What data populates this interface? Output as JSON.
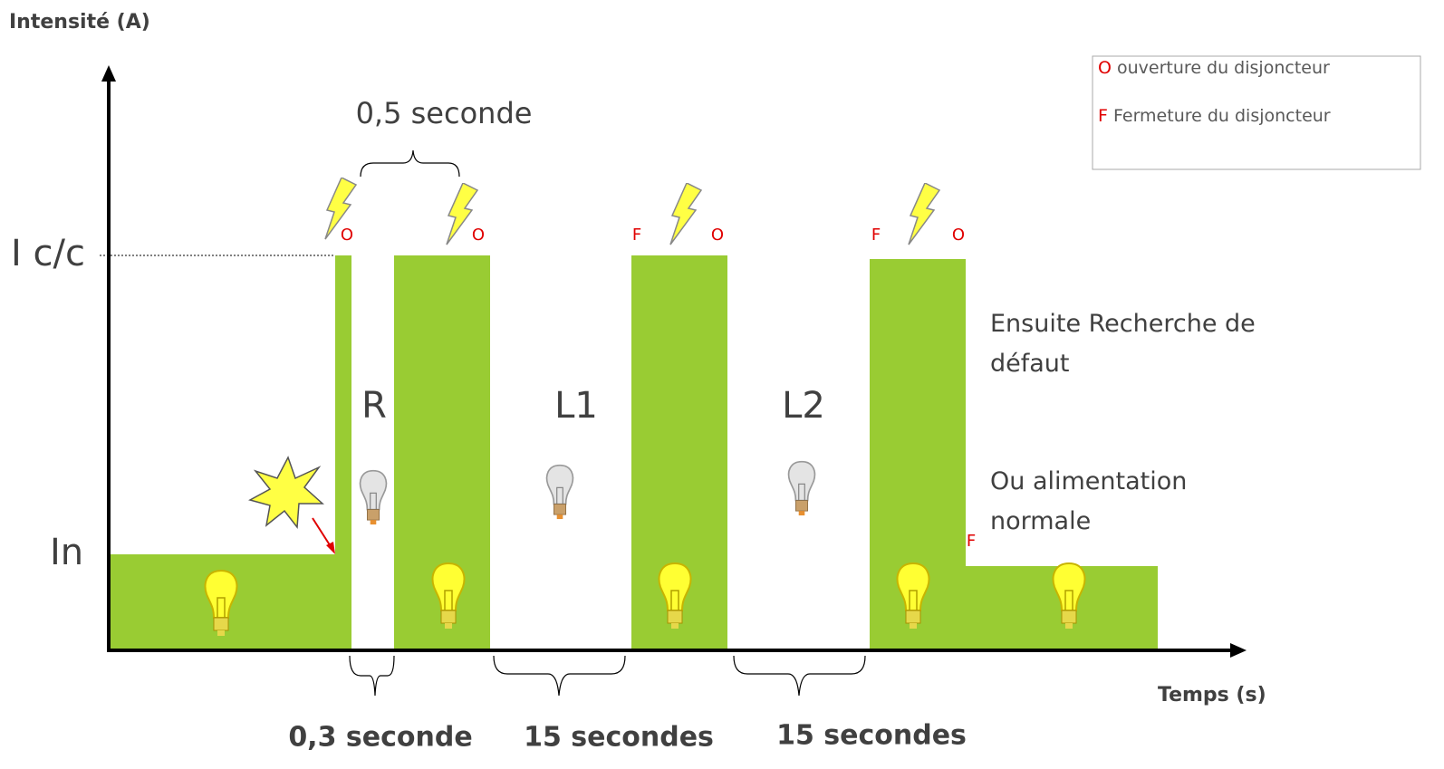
{
  "axes": {
    "y_label": "Intensité (A)",
    "x_label": "Temps (s)",
    "y_levels": [
      "I c/c",
      "In"
    ]
  },
  "legend": {
    "items": [
      {
        "symbol": "O",
        "text": "ouverture du disjoncteur"
      },
      {
        "symbol": "F",
        "text": "Fermeture du disjoncteur"
      }
    ]
  },
  "markers": [
    "O",
    "O",
    "F",
    "O",
    "F",
    "O",
    "F"
  ],
  "phases": [
    "R",
    "L1",
    "L2"
  ],
  "durations": {
    "top": "0,5 seconde",
    "bottom": [
      "0,3 seconde",
      "15 secondes",
      "15 secondes"
    ]
  },
  "notes": [
    "Ensuite Recherche de défaut",
    "Ou alimentation normale"
  ]
}
